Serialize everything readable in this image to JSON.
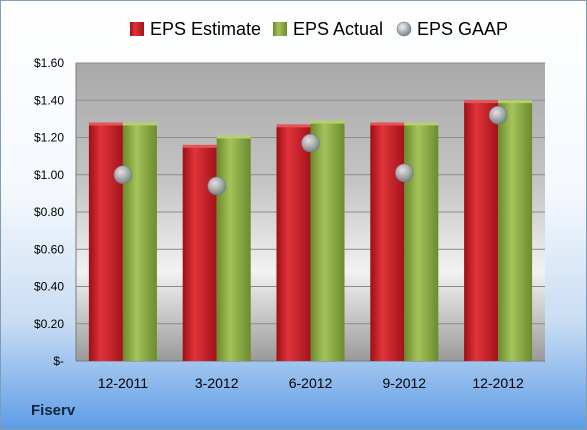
{
  "company": "Fiserv",
  "chart_data": {
    "type": "bar",
    "categories": [
      "12-2011",
      "3-2012",
      "6-2012",
      "9-2012",
      "12-2012"
    ],
    "series": [
      {
        "name": "EPS Estimate",
        "values": [
          1.27,
          1.15,
          1.26,
          1.27,
          1.39
        ],
        "color": "#c0141c",
        "kind": "bar"
      },
      {
        "name": "EPS Actual",
        "values": [
          1.27,
          1.2,
          1.28,
          1.27,
          1.39
        ],
        "color": "#7ea23a",
        "kind": "bar"
      },
      {
        "name": "EPS GAAP",
        "values": [
          1.0,
          0.94,
          1.17,
          1.01,
          1.32
        ],
        "color": "#9aa5ad",
        "kind": "marker"
      }
    ],
    "ylim": [
      0,
      1.6
    ],
    "yticks": [
      0,
      0.2,
      0.4,
      0.6,
      0.8,
      1.0,
      1.2,
      1.4,
      1.6
    ],
    "ytick_labels": [
      "$-",
      "$0.20",
      "$0.40",
      "$0.60",
      "$0.80",
      "$1.00",
      "$1.20",
      "$1.40",
      "$1.60"
    ],
    "legend_position": "top",
    "grid": true
  }
}
